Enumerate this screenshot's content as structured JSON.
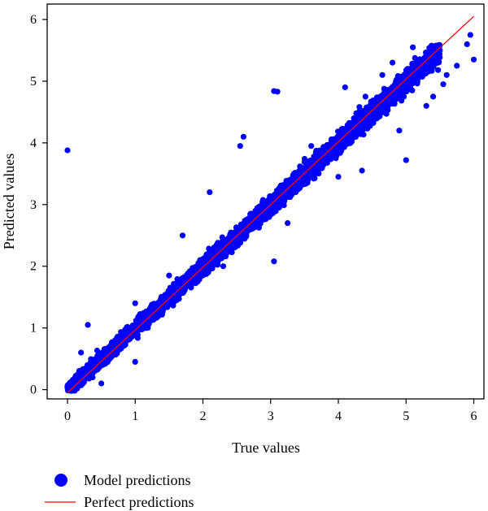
{
  "chart_data": {
    "type": "scatter",
    "title": "",
    "xlabel": "True values",
    "ylabel": "Predicted values",
    "xlim": [
      -0.3,
      6.15
    ],
    "ylim": [
      -0.15,
      6.25
    ],
    "xticks": [
      0,
      1,
      2,
      3,
      4,
      5,
      6
    ],
    "yticks": [
      0,
      1,
      2,
      3,
      4,
      5,
      6
    ],
    "grid": false,
    "legend_position": "bottom-left, below plot",
    "series": [
      {
        "name": "Model predictions",
        "kind": "scatter",
        "color": "#0000ff",
        "points_note_count": 7000,
        "trend": {
          "slope": 1.0,
          "intercept": -0.05,
          "x_range": [
            0,
            5.5
          ]
        },
        "outliers": [
          [
            0.0,
            3.88
          ],
          [
            3.05,
            4.84
          ],
          [
            3.1,
            4.83
          ],
          [
            3.05,
            2.08
          ],
          [
            2.6,
            4.1
          ],
          [
            2.55,
            3.95
          ],
          [
            5.95,
            5.75
          ],
          [
            6.0,
            5.35
          ],
          [
            5.9,
            5.6
          ],
          [
            5.0,
            3.72
          ],
          [
            5.4,
            4.75
          ],
          [
            5.3,
            4.6
          ],
          [
            4.35,
            3.55
          ],
          [
            4.65,
            5.1
          ],
          [
            4.1,
            4.9
          ],
          [
            1.0,
            0.45
          ],
          [
            0.3,
            1.05
          ],
          [
            2.85,
            2.9
          ],
          [
            1.7,
            2.5
          ],
          [
            1.0,
            1.4
          ],
          [
            2.3,
            2.0
          ],
          [
            3.25,
            2.7
          ],
          [
            4.0,
            3.45
          ],
          [
            4.9,
            4.2
          ],
          [
            5.6,
            5.1
          ],
          [
            5.75,
            5.25
          ],
          [
            5.55,
            4.95
          ],
          [
            4.4,
            4.75
          ],
          [
            3.6,
            3.95
          ],
          [
            2.1,
            3.2
          ],
          [
            1.5,
            1.85
          ],
          [
            0.5,
            0.1
          ],
          [
            0.2,
            0.6
          ],
          [
            5.1,
            5.55
          ],
          [
            4.8,
            5.3
          ]
        ]
      },
      {
        "name": "Perfect predictions",
        "kind": "line",
        "color": "#ff0000",
        "x": [
          0,
          6
        ],
        "y": [
          -0.05,
          6.05
        ]
      }
    ]
  }
}
